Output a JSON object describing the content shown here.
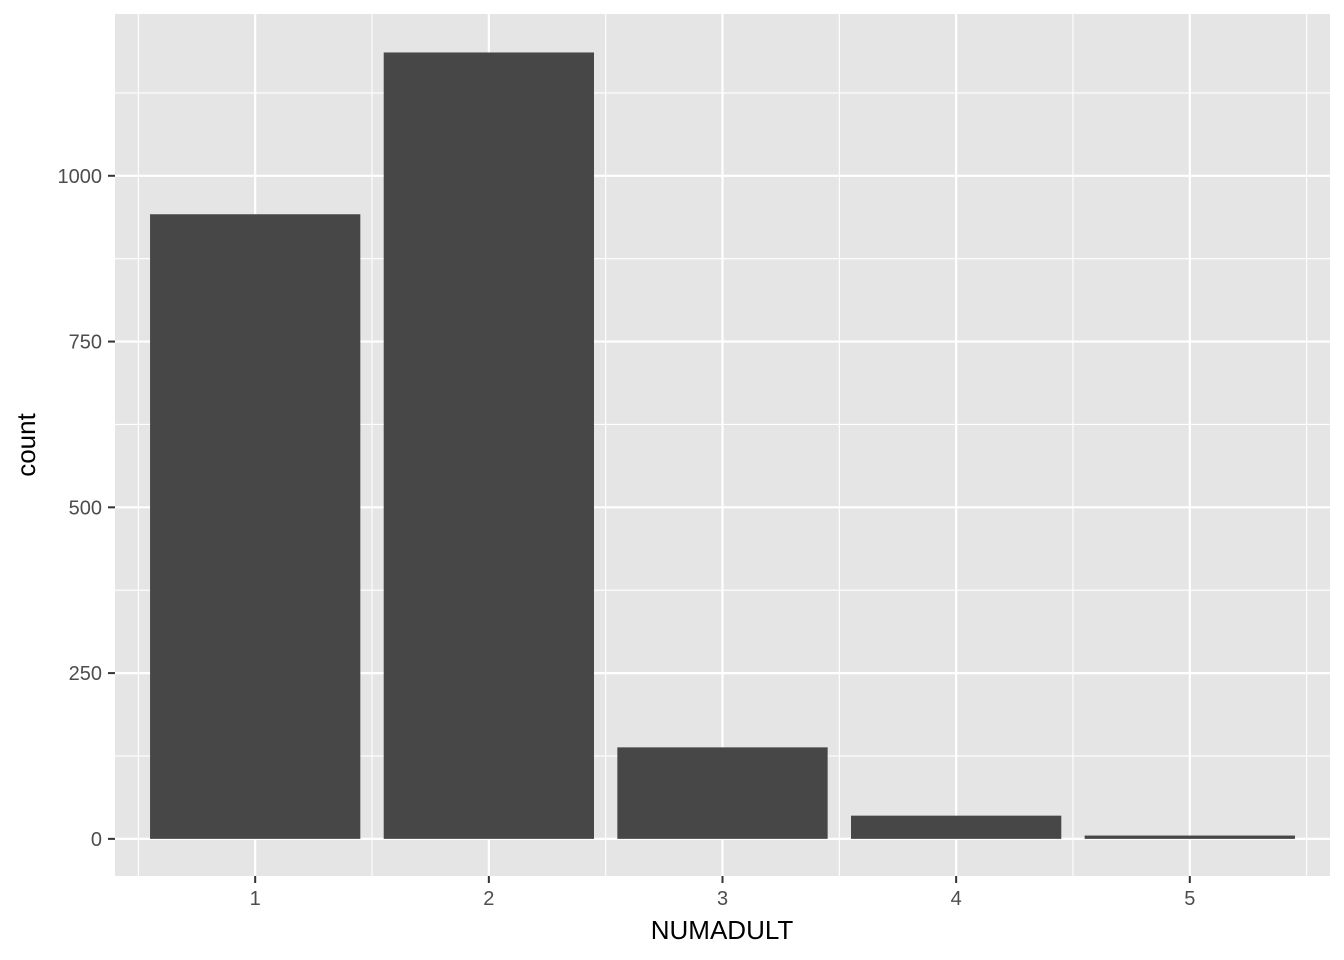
{
  "chart_data": {
    "type": "bar",
    "title": "",
    "xlabel": "NUMADULT",
    "ylabel": "count",
    "categories": [
      "1",
      "2",
      "3",
      "4",
      "5"
    ],
    "values": [
      942,
      1186,
      138,
      35,
      5
    ],
    "ylim": [
      -56,
      1244
    ],
    "yticks": [
      0,
      250,
      500,
      750,
      1000
    ],
    "ytick_labels": [
      "0",
      "250",
      "500",
      "750",
      "1000"
    ],
    "grid": true,
    "legend": "none",
    "colors": {
      "panel_bg": "#e5e5e5",
      "grid": "#ffffff",
      "bar": "#474747",
      "tick_text": "#4d4d4d",
      "title_text": "#000000"
    }
  }
}
